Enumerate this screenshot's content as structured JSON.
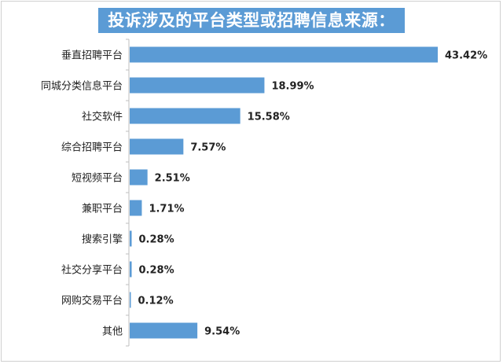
{
  "chart_data": {
    "type": "bar",
    "orientation": "horizontal",
    "title": "投诉涉及的平台类型或招聘信息来源：",
    "categories": [
      "垂直招聘平台",
      "同城分类信息平台",
      "社交软件",
      "综合招聘平台",
      "短视频平台",
      "兼职平台",
      "搜索引擎",
      "社交分享平台",
      "网购交易平台",
      "其他"
    ],
    "values": [
      43.42,
      18.99,
      15.58,
      7.57,
      2.51,
      1.71,
      0.28,
      0.28,
      0.12,
      9.54
    ],
    "value_labels": [
      "43.42%",
      "18.99%",
      "15.58%",
      "7.57%",
      "2.51%",
      "1.71%",
      "0.28%",
      "0.28%",
      "0.12%",
      "9.54%"
    ],
    "unit": "%",
    "xlim": [
      0,
      45
    ],
    "grid": false,
    "legend": "none",
    "colors": {
      "bar": "#5b9bd5",
      "title_bg": "#5b9bd5",
      "title_text": "#ffffff",
      "axis": "#bfbfbf"
    }
  }
}
